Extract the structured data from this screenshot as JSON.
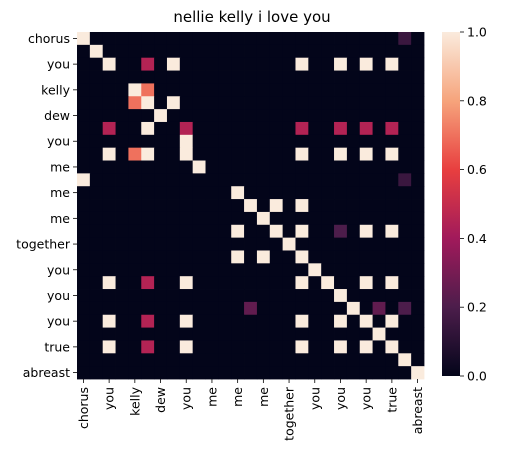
{
  "chart_data": {
    "type": "heatmap",
    "title": "nellie kelly i love you",
    "xlabel": "",
    "ylabel": "",
    "x_tick_labels": [
      "chorus",
      "you",
      "kelly",
      "dew",
      "you",
      "me",
      "me",
      "me",
      "together",
      "you",
      "you",
      "you",
      "true",
      "abreast"
    ],
    "y_tick_labels": [
      "chorus",
      "you",
      "kelly",
      "dew",
      "you",
      "me",
      "me",
      "me",
      "together",
      "you",
      "you",
      "you",
      "true",
      "abreast"
    ],
    "colorbar": {
      "min": 0.0,
      "max": 1.0,
      "ticks": [
        "0.0",
        "0.2",
        "0.4",
        "0.6",
        "0.8",
        "1.0"
      ]
    },
    "grid": false,
    "n": 27,
    "matrix": [
      [
        1,
        0,
        0,
        0,
        0,
        0,
        0,
        0,
        0,
        0,
        0,
        0,
        0,
        0,
        0,
        0,
        0,
        0,
        0,
        0,
        0,
        0,
        0,
        0,
        0,
        0.15,
        0
      ],
      [
        0,
        1,
        0,
        0,
        0,
        0,
        0,
        0,
        0,
        0,
        0,
        0,
        0,
        0,
        0,
        0,
        0,
        0,
        0,
        0,
        0,
        0,
        0,
        0,
        0,
        0,
        0
      ],
      [
        0,
        0,
        1,
        0,
        0,
        0.45,
        0,
        1,
        0,
        0,
        0,
        0,
        0,
        0,
        0,
        0,
        0,
        1,
        0,
        0,
        1,
        0,
        1,
        0,
        1,
        0,
        0
      ],
      [
        0,
        0,
        0,
        0,
        0,
        0,
        0,
        0,
        0,
        0,
        0,
        0,
        0,
        0,
        0,
        0,
        0,
        0,
        0,
        0,
        0,
        0,
        0,
        0,
        0,
        0,
        0
      ],
      [
        0,
        0,
        0,
        0,
        1,
        0.7,
        0,
        0,
        0,
        0,
        0,
        0,
        0,
        0,
        0,
        0,
        0,
        0,
        0,
        0,
        0,
        0,
        0,
        0,
        0,
        0,
        0
      ],
      [
        0,
        0,
        0,
        0,
        0.7,
        1,
        0,
        1,
        0,
        0,
        0,
        0,
        0,
        0,
        0,
        0,
        0,
        0,
        0,
        0,
        0,
        0,
        0,
        0,
        0,
        0,
        0
      ],
      [
        0,
        0,
        0,
        0,
        0,
        0,
        1,
        0,
        0,
        0,
        0,
        0,
        0,
        0,
        0,
        0,
        0,
        0,
        0,
        0,
        0,
        0,
        0,
        0,
        0,
        0,
        0
      ],
      [
        0,
        0,
        0.45,
        0,
        0,
        1,
        0,
        0,
        0.45,
        0,
        0,
        0,
        0,
        0,
        0,
        0,
        0,
        0.45,
        0,
        0,
        0.45,
        0,
        0.45,
        0,
        0.45,
        0,
        0
      ],
      [
        0,
        0,
        0,
        0,
        0,
        0,
        0,
        0,
        1,
        0,
        0,
        0,
        0,
        0,
        0,
        0,
        0,
        0,
        0,
        0,
        0,
        0,
        0,
        0,
        0,
        0,
        0
      ],
      [
        0,
        0,
        1,
        0,
        0.7,
        1,
        0,
        0,
        1,
        0,
        0,
        0,
        0,
        0,
        0,
        0,
        0,
        1,
        0,
        0,
        1,
        0,
        1,
        0,
        1,
        0,
        0
      ],
      [
        0,
        0,
        0,
        0,
        0,
        0,
        0,
        0,
        0,
        1,
        0,
        0,
        0,
        0,
        0,
        0,
        0,
        0,
        0,
        0,
        0,
        0,
        0,
        0,
        0,
        0,
        0
      ],
      [
        1,
        0,
        0,
        0,
        0,
        0,
        0,
        0,
        0,
        0,
        0,
        0,
        0,
        0,
        0,
        0,
        0,
        0,
        0,
        0,
        0,
        0,
        0,
        0,
        0,
        0.15,
        0
      ],
      [
        0,
        0,
        0,
        0,
        0,
        0,
        0,
        0,
        0,
        0,
        0,
        0,
        1,
        0,
        0,
        0,
        0,
        0,
        0,
        0,
        0,
        0,
        0,
        0,
        0,
        0,
        0
      ],
      [
        0,
        0,
        0,
        0,
        0,
        0,
        0,
        0,
        0,
        0,
        0,
        0,
        0,
        1,
        0,
        1,
        0,
        1,
        0,
        0,
        0,
        0,
        0,
        0,
        0,
        0,
        0
      ],
      [
        0,
        0,
        0,
        0,
        0,
        0,
        0,
        0,
        0,
        0,
        0,
        0,
        0,
        0,
        1,
        0,
        0,
        0,
        0,
        0,
        0,
        0,
        0,
        0,
        0,
        0,
        0
      ],
      [
        0,
        0,
        0,
        0,
        0,
        0,
        0,
        0,
        0,
        0,
        0,
        0,
        1,
        0,
        0,
        1,
        0,
        1,
        0,
        0,
        0.2,
        0,
        1,
        0,
        1,
        0,
        0
      ],
      [
        0,
        0,
        0,
        0,
        0,
        0,
        0,
        0,
        0,
        0,
        0,
        0,
        0,
        0,
        0,
        0,
        1,
        0,
        0,
        0,
        0,
        0,
        0,
        0,
        0,
        0,
        0
      ],
      [
        0,
        0,
        0,
        0,
        0,
        0,
        0,
        0,
        0,
        0,
        0,
        0,
        1,
        0,
        1,
        0,
        0,
        1,
        0,
        0,
        0,
        0,
        0,
        0,
        0,
        0,
        0
      ],
      [
        0,
        0,
        0,
        0,
        0,
        0,
        0,
        0,
        0,
        0,
        0,
        0,
        0,
        0,
        0,
        0,
        0,
        0,
        1,
        0,
        0,
        0,
        0,
        0,
        0,
        0,
        0
      ],
      [
        0,
        0,
        1,
        0,
        0,
        0.45,
        0,
        0,
        1,
        0,
        0,
        0,
        0,
        0,
        0,
        0,
        0,
        1,
        0,
        1,
        0,
        0,
        1,
        0,
        1,
        0,
        0
      ],
      [
        0,
        0,
        0,
        0,
        0,
        0,
        0,
        0,
        0,
        0,
        0,
        0,
        0,
        0,
        0,
        0,
        0,
        0,
        0,
        0,
        1,
        0,
        0,
        0,
        0,
        0,
        0
      ],
      [
        0,
        0,
        0,
        0,
        0,
        0,
        0,
        0,
        0,
        0,
        0,
        0,
        0,
        0.25,
        0,
        0,
        0,
        0,
        0,
        0,
        0,
        1,
        0,
        0.25,
        0,
        0.2,
        0
      ],
      [
        0,
        0,
        1,
        0,
        0,
        0.45,
        0,
        0,
        1,
        0,
        0,
        0,
        0,
        0,
        0,
        0,
        0,
        1,
        0,
        0,
        1,
        0,
        1,
        0,
        1,
        0,
        0
      ],
      [
        0,
        0,
        0,
        0,
        0,
        0,
        0,
        0,
        0,
        0,
        0,
        0,
        0,
        0,
        0,
        0,
        0,
        0,
        0,
        0,
        0,
        0,
        0,
        1,
        0,
        0,
        0
      ],
      [
        0,
        0,
        1,
        0,
        0,
        0.45,
        0,
        0,
        1,
        0,
        0,
        0,
        0,
        0,
        0,
        0,
        0,
        1,
        0,
        0,
        1,
        0,
        1,
        0,
        1,
        0,
        0
      ],
      [
        0,
        0,
        0,
        0,
        0,
        0,
        0,
        0,
        0,
        0,
        0,
        0,
        0,
        0,
        0,
        0,
        0,
        0,
        0,
        0,
        0,
        0,
        0,
        0,
        0,
        1,
        0
      ],
      [
        0,
        0,
        0,
        0,
        0,
        0,
        0,
        0,
        0,
        0,
        0,
        0,
        0,
        0,
        0,
        0,
        0,
        0,
        0,
        0,
        0,
        0,
        0,
        0,
        0,
        0,
        1
      ]
    ]
  }
}
